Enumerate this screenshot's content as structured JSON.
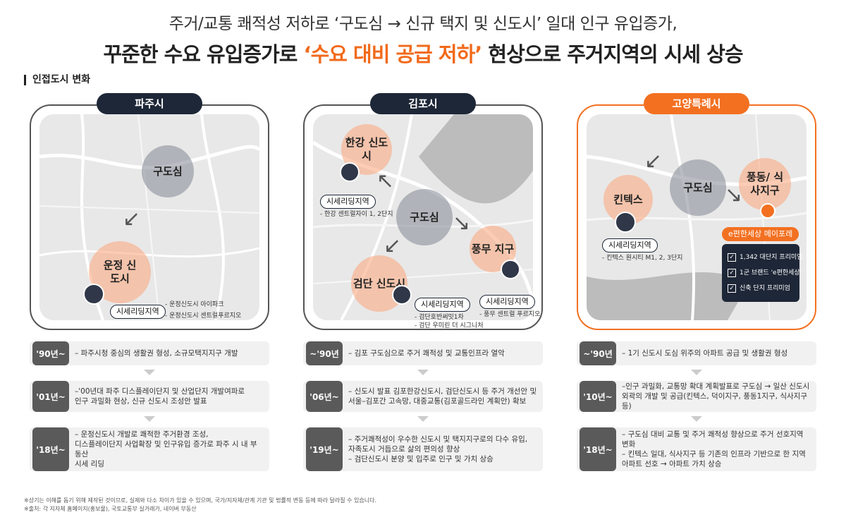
{
  "headline": {
    "line1": "주거/교통 쾌적성 저하로 ‘구도심 → 신규 택지 및 신도시’ 일대 인구 유입증가,",
    "line2_prefix": "꾸준한 수요 유입증가로 ",
    "line2_highlight": "‘수요 대비 공급 저하’",
    "line2_suffix": " 현상으로 주거지역의 시세 상승",
    "highlight_color": "#f26a1b"
  },
  "section_label": "인접도시 변화",
  "columns": [
    {
      "city": "파주시",
      "old_center": "구도심",
      "new_area": "운정 신도시",
      "leading_label": "시세리딩지역",
      "notes": [
        "- 운정신도시 아이파크",
        "- 운정신도시 센트럴푸르지오"
      ],
      "rows": [
        {
          "year": "'90년~",
          "lines": [
            "– 파주시청 중심의 생활권 형성, 소규모택지지구 개발"
          ]
        },
        {
          "year": "'01년~",
          "lines": [
            "–'00년대 파주 디스플레이단지 및 산업단지 개발여파로",
            "인구 과밀화 현상, 신규 신도시 조성안 발표"
          ]
        },
        {
          "year": "'18년~",
          "lines": [
            "– 운정신도시 개발로 쾌적한 주거환경 조성,",
            "디스플레이단지 사업확장 및 인구유입 증가로 파주 시 내 부동산",
            "시세 리딩"
          ]
        }
      ]
    },
    {
      "city": "김포시",
      "old_center": "구도심",
      "area_a": "한강 신도시",
      "area_b": "검단 신도시",
      "area_c": "풍무 지구",
      "leading_label": "시세리딩지역",
      "notes_a": [
        "- 한강 센트럴자이 1, 2단지"
      ],
      "notes_b": [
        "- 검단호반써밋1차",
        "- 검단 우미린 더 시그니처"
      ],
      "notes_c": [
        "- 풍무 센트럴 푸르지오"
      ],
      "rows": [
        {
          "year": "~'90년",
          "lines": [
            "– 김포 구도심으로 주거 쾌적성 및 교통인프라 열악"
          ]
        },
        {
          "year": "'06년~",
          "lines": [
            "– 신도시 발표 김포한강신도시, 검단신도시 등 주거 개선안 및",
            "서울–김포간 고속망, 대중교통(김포골드라인 계획안) 확보"
          ]
        },
        {
          "year": "'19년~",
          "lines": [
            "– 주거쾌적성이 우수한 신도시 및 택지지구로의 다수 유입,",
            "자족도시 거듭으로 삶의 편의성 향상",
            "– 검단신도시 분양 및 입주로 인구 및 가치 상승"
          ]
        }
      ]
    },
    {
      "city": "고양특례시",
      "old_center": "구도심",
      "area_a": "킨텍스",
      "area_b": "풍동/ 식사지구",
      "leading_label": "시세리딩지역",
      "notes_a": [
        "- 킨텍스 원시티 M1, 2, 3단지"
      ],
      "brand_label": "e편한세상 메이포레",
      "brand_points": [
        "1,342 대단지 프리미엄",
        "1군 브랜드 'e편한세상'",
        "신축 단지 프리미엄"
      ],
      "rows": [
        {
          "year": "~'90년",
          "lines": [
            "– 1기 신도시 도심 위주의 아파트 공급 및 생활권 형성"
          ]
        },
        {
          "year": "'10년~",
          "lines": [
            "–인구 과밀화, 교통망 확대 계획발표로 구도심 → 일산 신도시",
            "외곽의 개발 및 공급(킨텍스, 덕이지구, 풍동1지구, 식사지구 등)"
          ]
        },
        {
          "year": "'18년~",
          "lines": [
            "– 구도심 대비 교통 및 주거 쾌적성 향상으로 주거 선호지역 변화",
            "– 킨텍스 일대, 식사지구 등 기존의 인프라 기반으로 한 지역",
            "아파트 선호 → 아파트 가치 상승"
          ]
        }
      ]
    }
  ],
  "footnotes": [
    "※상기는 이해를 돕기 위해 제작된 것이므로, 실제와 다소 차이가 있을 수 있으며, 국가/지자체/관계 기관 및 법률적 변동 등에 따라 달라질 수 있습니다.",
    "※출처: 각 지자체 홈페이지(홍보물), 국토교통부 실거래가, 네이버 부동산"
  ]
}
